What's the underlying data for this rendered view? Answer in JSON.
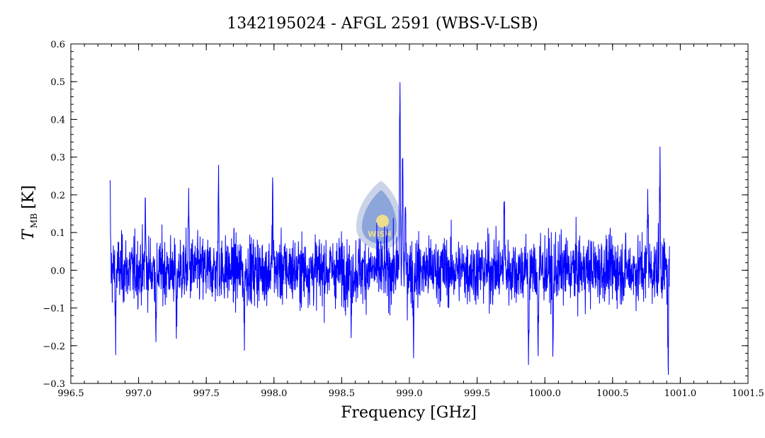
{
  "chart_data": {
    "type": "line",
    "title": "1342195024 - AFGL 2591 (WBS-V-LSB)",
    "xlabel": "Frequency [GHz]",
    "ylabel_main": "T",
    "ylabel_sub": "MB",
    "ylabel_unit": "[K]",
    "xlim": [
      996.5,
      1001.5
    ],
    "ylim": [
      -0.3,
      0.6
    ],
    "xticks": [
      996.5,
      997.0,
      997.5,
      998.0,
      998.5,
      999.0,
      999.5,
      1000.0,
      1000.5,
      1001.0,
      1001.5
    ],
    "xtick_labels": [
      "996.5",
      "997.0",
      "997.5",
      "998.0",
      "998.5",
      "999.0",
      "999.5",
      "1000.0",
      "1000.5",
      "1001.0",
      "1001.5"
    ],
    "yticks": [
      -0.3,
      -0.2,
      -0.1,
      0.0,
      0.1,
      0.2,
      0.3,
      0.4,
      0.5,
      0.6
    ],
    "ytick_labels": [
      "−0.3",
      "−0.2",
      "−0.1",
      "0.0",
      "0.1",
      "0.2",
      "0.3",
      "0.4",
      "0.5",
      "0.6"
    ],
    "series_color": "#0000ff",
    "spectrum_range": [
      996.79,
      1000.92
    ],
    "noise_rms": 0.055,
    "features": [
      {
        "x": 996.79,
        "y": 0.18
      },
      {
        "x": 996.83,
        "y": -0.15
      },
      {
        "x": 997.05,
        "y": 0.16
      },
      {
        "x": 997.13,
        "y": -0.17
      },
      {
        "x": 997.28,
        "y": -0.18
      },
      {
        "x": 997.37,
        "y": 0.18
      },
      {
        "x": 997.59,
        "y": 0.23
      },
      {
        "x": 997.78,
        "y": -0.16
      },
      {
        "x": 997.99,
        "y": 0.21
      },
      {
        "x": 998.57,
        "y": -0.16
      },
      {
        "x": 998.93,
        "y": 0.5
      },
      {
        "x": 998.95,
        "y": 0.29
      },
      {
        "x": 998.97,
        "y": 0.15
      },
      {
        "x": 999.03,
        "y": -0.17
      },
      {
        "x": 999.7,
        "y": 0.2
      },
      {
        "x": 999.88,
        "y": -0.22
      },
      {
        "x": 999.95,
        "y": -0.21
      },
      {
        "x": 1000.06,
        "y": -0.22
      },
      {
        "x": 1000.76,
        "y": 0.23
      },
      {
        "x": 1000.85,
        "y": 0.29
      },
      {
        "x": 1000.91,
        "y": -0.24
      }
    ]
  },
  "logo": {
    "text": "WISH",
    "colors": {
      "outer": "#b8c4e0",
      "inner": "#5a7fd0",
      "star": "#ffe680"
    }
  }
}
